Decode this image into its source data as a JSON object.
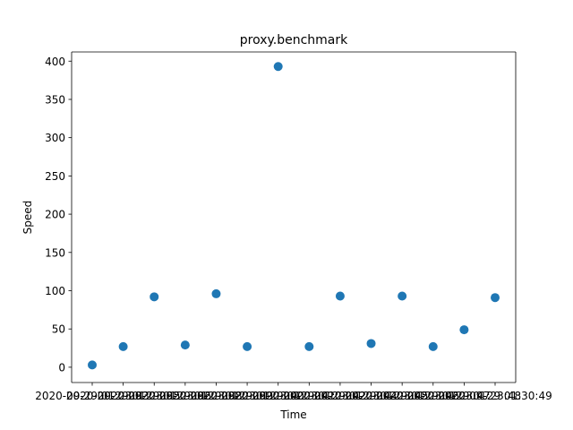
{
  "chart_data": {
    "type": "scatter",
    "title": "proxy.benchmark",
    "xlabel": "Time",
    "ylabel": "Speed",
    "ylim": [
      -20,
      412
    ],
    "yticks": [
      0,
      50,
      100,
      150,
      200,
      250,
      300,
      350,
      400
    ],
    "grid": false,
    "legend": "none",
    "marker_color": "#1f77b4",
    "x": [
      "2020-09-29 01:23:33",
      "2020-09-29 01:23:35",
      "2020-09-29 01:23:36",
      "2020-09-29 01:23:38",
      "2020-09-29 01:23:39",
      "2020-09-29 01:23:40",
      "2020-09-29 01:23:41",
      "2020-09-29 01:23:42",
      "2020-09-29 01:23:44",
      "2020-09-29 01:23:45",
      "2020-09-29 01:23:46",
      "2020-09-29 01:23:47",
      "2020-09-29 01:23:48",
      "2020-09-29 01:30:49"
    ],
    "values": [
      3,
      27,
      92,
      29,
      96,
      27,
      393,
      27,
      93,
      31,
      93,
      27,
      49,
      91
    ]
  }
}
